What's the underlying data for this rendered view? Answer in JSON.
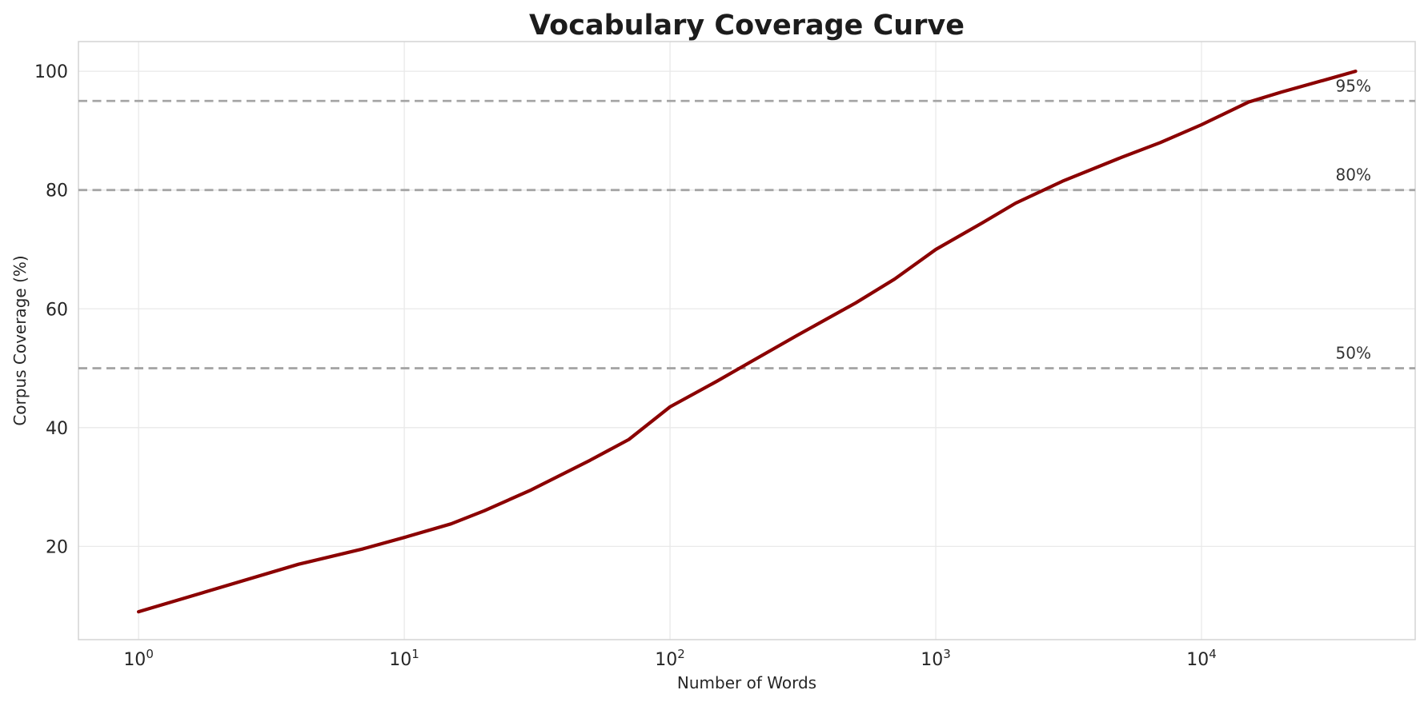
{
  "chart_data": {
    "type": "line",
    "title": "Vocabulary Coverage Curve",
    "xlabel": "Number of Words",
    "ylabel": "Corpus Coverage (%)",
    "xscale": "log",
    "grid": true,
    "legend_position": "none",
    "xlim": [
      0.594,
      63700
    ],
    "ylim": [
      4.3,
      105
    ],
    "x_ticks": [
      {
        "value": 1,
        "label": "10^0",
        "base": "10",
        "exponent": "0"
      },
      {
        "value": 10,
        "label": "10^1",
        "base": "10",
        "exponent": "1"
      },
      {
        "value": 100,
        "label": "10^2",
        "base": "10",
        "exponent": "2"
      },
      {
        "value": 1000,
        "label": "10^3",
        "base": "10",
        "exponent": "3"
      },
      {
        "value": 10000,
        "label": "10^4",
        "base": "10",
        "exponent": "4"
      }
    ],
    "y_ticks": [
      20,
      40,
      60,
      80,
      100
    ],
    "reference_lines": [
      {
        "y": 95,
        "label": "95%"
      },
      {
        "y": 80,
        "label": "80%"
      },
      {
        "y": 50,
        "label": "50%"
      }
    ],
    "series": [
      {
        "name": "corpus-coverage",
        "color": "#8b0000",
        "x": [
          1,
          4,
          7,
          10,
          15,
          20,
          30,
          50,
          70,
          100,
          150,
          200,
          300,
          500,
          700,
          1000,
          1500,
          2000,
          3000,
          5000,
          7000,
          10000,
          15000,
          20000,
          30000,
          38000
        ],
        "y": [
          9,
          17,
          19.6,
          21.5,
          23.8,
          26,
          29.5,
          34.5,
          38,
          43.5,
          47.8,
          51,
          55.5,
          61,
          65,
          70,
          74.5,
          77.8,
          81.5,
          85.5,
          88,
          91,
          94.8,
          96.5,
          98.7,
          100
        ]
      }
    ]
  },
  "colors": {
    "curve": "#8b0000",
    "grid": "#e9e9e9",
    "spine": "#d4d4d4",
    "dashed_line": "#a6a6a6",
    "tick_text": "#262626",
    "title_text": "#1c1c1c",
    "ref_label_text": "#333333",
    "background": "#ffffff"
  }
}
